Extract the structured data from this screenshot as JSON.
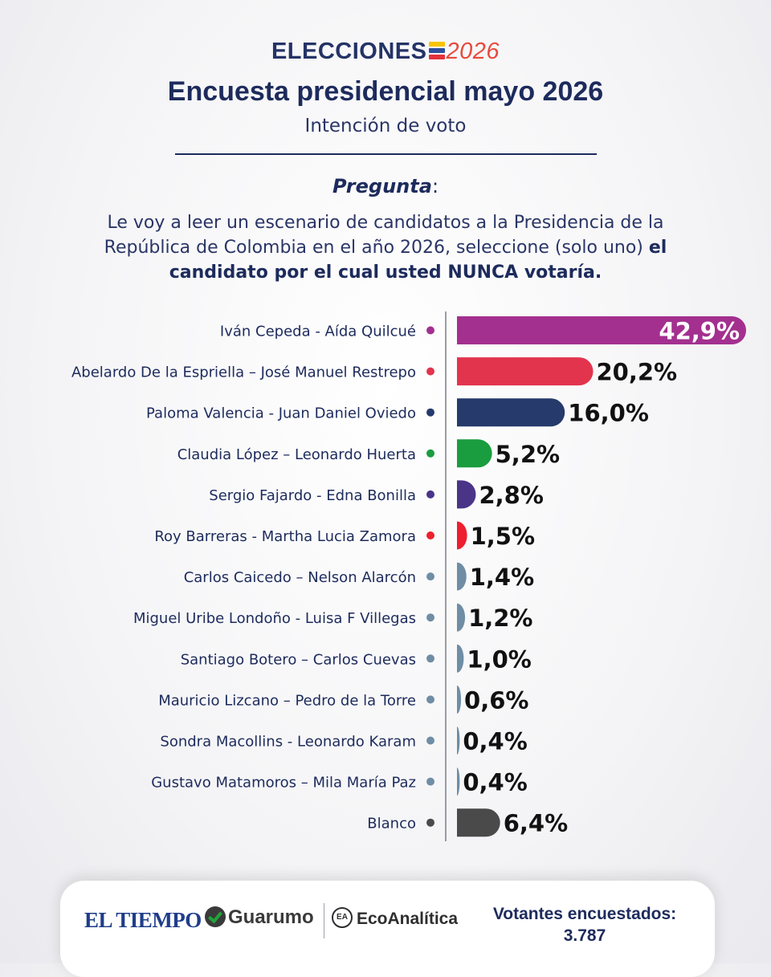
{
  "header": {
    "logo_prefix": "ELECCIONES",
    "logo_year": "2026",
    "title": "Encuesta presidencial mayo 2026",
    "subtitle": "Intención de voto"
  },
  "question": {
    "heading": "Pregunta",
    "heading_suffix": ":",
    "text": "Le voy a leer un escenario de candidatos a la Presidencia de la República de Colombia en el año 2026, seleccione (solo uno) ",
    "text_bold": "el candidato por el cual usted NUNCA votaría."
  },
  "chart_data": {
    "type": "bar",
    "orientation": "horizontal",
    "title": "Encuesta presidencial mayo 2026",
    "categories": [
      "Iván Cepeda - Aída Quilcué",
      "Abelardo De la Espriella – José Manuel Restrepo",
      "Paloma Valencia - Juan Daniel Oviedo",
      "Claudia López – Leonardo Huerta",
      "Sergio Fajardo - Edna Bonilla",
      "Roy Barreras - Martha Lucia Zamora",
      "Carlos Caicedo – Nelson Alarcón",
      "Miguel Uribe Londoño - Luisa F Villegas",
      "Santiago Botero – Carlos Cuevas",
      "Mauricio Lizcano – Pedro de la Torre",
      "Sondra Macollins - Leonardo Karam",
      "Gustavo Matamoros – Mila María Paz",
      "Blanco"
    ],
    "values": [
      42.9,
      20.2,
      16.0,
      5.2,
      2.8,
      1.5,
      1.4,
      1.2,
      1.0,
      0.6,
      0.4,
      0.4,
      6.4
    ],
    "labels": [
      "42,9%",
      "20,2%",
      "16,0%",
      "5,2%",
      "2,8%",
      "1,5%",
      "1,4%",
      "1,2%",
      "1,0%",
      "0,6%",
      "0,4%",
      "0,4%",
      "6,4%"
    ],
    "colors": [
      "#a3308f",
      "#e2344d",
      "#263a6b",
      "#1a9d3f",
      "#4a3488",
      "#ee1f2e",
      "#6f8da4",
      "#6f8da4",
      "#6f8da4",
      "#6f8da4",
      "#6f8da4",
      "#6f8da4",
      "#4a4a4a"
    ],
    "unit": "%",
    "xlim": [
      0,
      42.9
    ],
    "grid": false,
    "legend": "none"
  },
  "footer": {
    "brand1": "EL TIEMPO",
    "brand2": "Guarumo",
    "brand3": "EcoAnalítica",
    "voters_label": "Votantes encuestados:",
    "voters_value": "3.787"
  }
}
